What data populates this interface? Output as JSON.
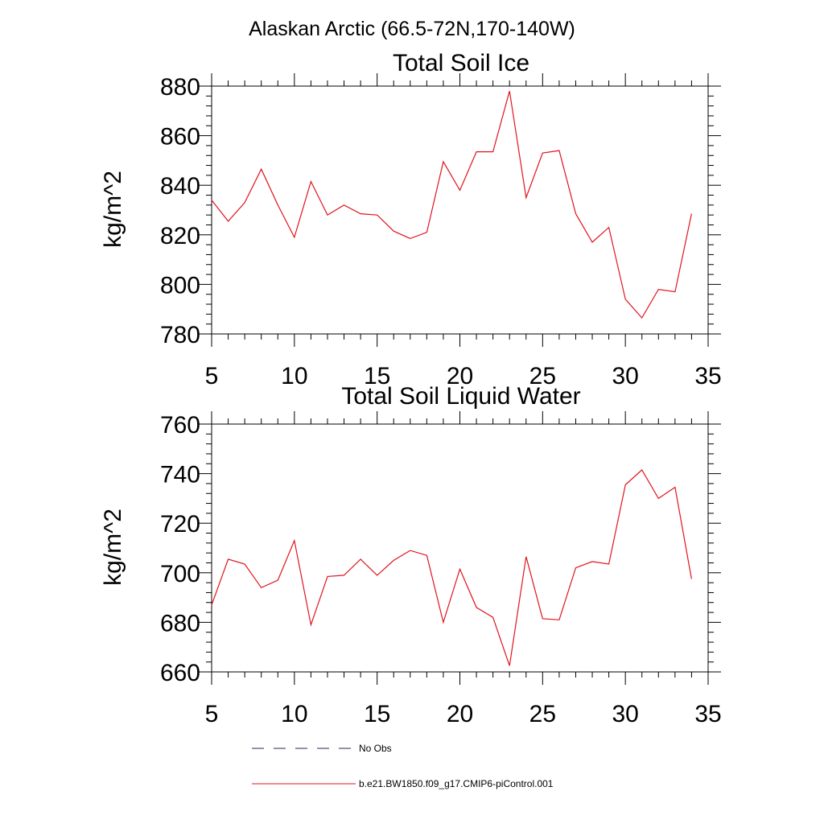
{
  "figure": {
    "title": "Alaskan Arctic (66.5-72N,170-140W)"
  },
  "legend": {
    "placement": "bottom",
    "entries": [
      {
        "label": "No Obs",
        "color": "#1f2a5a",
        "style": "dashed"
      },
      {
        "label": "b.e21.BW1850.f09_g17.CMIP6-piControl.001",
        "color": "#e0141e",
        "style": "solid"
      }
    ]
  },
  "chart_data": [
    {
      "type": "line",
      "title": "Total Soil Ice",
      "ylabel": "kg/m^2",
      "xlim": [
        5,
        35
      ],
      "ylim": [
        780,
        880
      ],
      "xticks": [
        5,
        10,
        15,
        20,
        25,
        30,
        35
      ],
      "yticks": [
        780,
        800,
        820,
        840,
        860,
        880
      ],
      "series": [
        {
          "name": "b.e21.BW1850.f09_g17.CMIP6-piControl.001",
          "color": "#e0141e",
          "x": [
            5,
            6,
            7,
            8,
            9,
            10,
            11,
            12,
            13,
            14,
            15,
            16,
            17,
            18,
            19,
            20,
            21,
            22,
            23,
            24,
            25,
            26,
            27,
            28,
            29,
            30,
            31,
            32,
            33,
            34
          ],
          "y": [
            834,
            825.5,
            833,
            846.5,
            832,
            819,
            841.5,
            828,
            832,
            828.5,
            828,
            821.5,
            818.5,
            821,
            849.5,
            838,
            853.5,
            853.5,
            878,
            835,
            853,
            854,
            828.5,
            817,
            823,
            794,
            786.5,
            798,
            797,
            828.5
          ]
        }
      ]
    },
    {
      "type": "line",
      "title": "Total Soil Liquid Water",
      "ylabel": "kg/m^2",
      "xlim": [
        5,
        35
      ],
      "ylim": [
        660,
        760
      ],
      "xticks": [
        5,
        10,
        15,
        20,
        25,
        30,
        35
      ],
      "yticks": [
        660,
        680,
        700,
        720,
        740,
        760
      ],
      "series": [
        {
          "name": "b.e21.BW1850.f09_g17.CMIP6-piControl.001",
          "color": "#e0141e",
          "x": [
            5,
            6,
            7,
            8,
            9,
            10,
            11,
            12,
            13,
            14,
            15,
            16,
            17,
            18,
            19,
            20,
            21,
            22,
            23,
            24,
            25,
            26,
            27,
            28,
            29,
            30,
            31,
            32,
            33,
            34
          ],
          "y": [
            687,
            705.5,
            703.5,
            694,
            697,
            713,
            679,
            698.5,
            699,
            705.5,
            699,
            705,
            709,
            707,
            680,
            701.5,
            686,
            682,
            662.5,
            706.5,
            681.5,
            681,
            702,
            704.5,
            703.5,
            735.5,
            741.5,
            730,
            734.5,
            697.5
          ]
        }
      ]
    }
  ]
}
